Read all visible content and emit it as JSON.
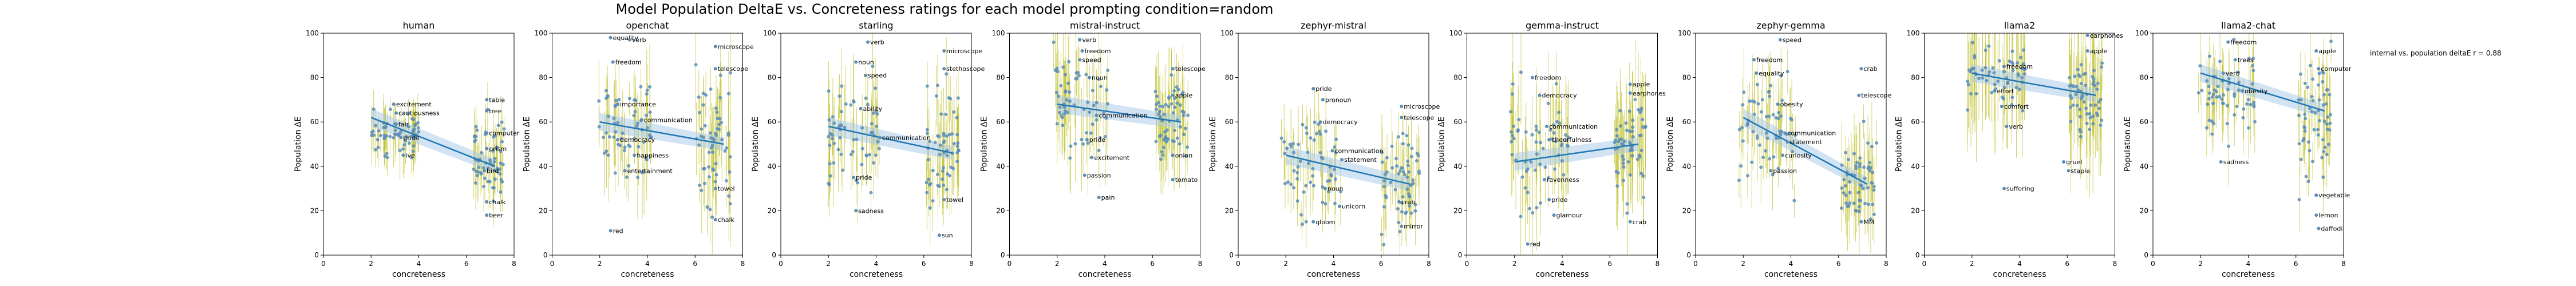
{
  "figure": {
    "title": "Model Population DeltaE vs. Concreteness ratings for each model prompting condition=random",
    "annotation": "internal vs. population deltaE r = 0.88"
  },
  "colors": {
    "points": "#5b8db8",
    "errorbars": "#bcbd22",
    "fit": "#1f77b4",
    "band": "#a6c8e8"
  },
  "chart_data": [
    {
      "type": "scatter",
      "title": "human",
      "xlabel": "concreteness",
      "ylabel": "Population ΔE",
      "xlim": [
        0,
        8
      ],
      "ylim": [
        0,
        100
      ],
      "xticks": [
        0,
        2,
        4,
        6,
        8
      ],
      "yticks": [
        0,
        20,
        40,
        60,
        80,
        100
      ],
      "fit": [
        [
          2,
          62
        ],
        [
          7.2,
          40
        ]
      ],
      "cluster_low": [
        2.0,
        4.0,
        42,
        74,
        55
      ],
      "cluster_high": [
        6.3,
        7.6,
        16,
        68,
        45
      ],
      "errorbar": 9,
      "labels": [
        [
          3.0,
          68,
          "excitement"
        ],
        [
          3.1,
          64,
          "cautiousness"
        ],
        [
          3.1,
          59,
          "fair"
        ],
        [
          3.3,
          53,
          "pride"
        ],
        [
          3.4,
          45,
          "ive"
        ],
        [
          6.9,
          70,
          "table"
        ],
        [
          6.9,
          65,
          "tree"
        ],
        [
          6.9,
          55,
          "computer"
        ],
        [
          6.9,
          48,
          "prism"
        ],
        [
          6.8,
          38,
          "bird"
        ],
        [
          6.9,
          24,
          "chalk"
        ],
        [
          6.9,
          18,
          "beer"
        ]
      ]
    },
    {
      "type": "scatter",
      "title": "openchat",
      "xlabel": "concreteness",
      "ylabel": "Population ΔE",
      "xlim": [
        0,
        8
      ],
      "ylim": [
        0,
        100
      ],
      "xticks": [
        0,
        2,
        4,
        6,
        8
      ],
      "yticks": [
        0,
        20,
        40,
        60,
        80,
        100
      ],
      "fit": [
        [
          2,
          60
        ],
        [
          7.2,
          50
        ]
      ],
      "cluster_low": [
        1.8,
        4.2,
        20,
        98,
        60
      ],
      "cluster_high": [
        6.0,
        7.5,
        15,
        98,
        50
      ],
      "errorbar": 14,
      "labels": [
        [
          2.5,
          98,
          "equality"
        ],
        [
          3.3,
          97,
          "verb"
        ],
        [
          2.6,
          87,
          "freedom"
        ],
        [
          2.8,
          68,
          "importance"
        ],
        [
          3.8,
          61,
          "communication"
        ],
        [
          2.8,
          52,
          "democracy"
        ],
        [
          3.5,
          45,
          "happiness"
        ],
        [
          3.1,
          38,
          "entertainment"
        ],
        [
          2.5,
          11,
          "red"
        ],
        [
          6.9,
          94,
          "microscope"
        ],
        [
          6.9,
          84,
          "telescope"
        ],
        [
          6.9,
          30,
          "towel"
        ],
        [
          6.9,
          16,
          "chalk"
        ]
      ]
    },
    {
      "type": "scatter",
      "title": "starling",
      "xlabel": "concreteness",
      "ylabel": "Population ΔE",
      "xlim": [
        0,
        8
      ],
      "ylim": [
        0,
        100
      ],
      "xticks": [
        0,
        2,
        4,
        6,
        8
      ],
      "yticks": [
        0,
        20,
        40,
        60,
        80,
        100
      ],
      "fit": [
        [
          2,
          58
        ],
        [
          7.2,
          46
        ]
      ],
      "cluster_low": [
        1.9,
        4.2,
        15,
        90,
        55
      ],
      "cluster_high": [
        6.1,
        7.5,
        8,
        94,
        48
      ],
      "errorbar": 14,
      "labels": [
        [
          3.7,
          96,
          "verb"
        ],
        [
          3.2,
          87,
          "noun"
        ],
        [
          3.6,
          81,
          "speed"
        ],
        [
          3.4,
          66,
          "ability"
        ],
        [
          4.2,
          53,
          "communication"
        ],
        [
          3.1,
          35,
          "pride"
        ],
        [
          3.2,
          20,
          "sadness"
        ],
        [
          6.9,
          92,
          "microscope"
        ],
        [
          6.9,
          84,
          "stethoscope"
        ],
        [
          6.9,
          25,
          "towel"
        ],
        [
          6.7,
          9,
          "sun"
        ]
      ]
    },
    {
      "type": "scatter",
      "title": "mistral-instruct",
      "xlabel": "concreteness",
      "ylabel": "Population ΔE",
      "xlim": [
        0,
        8
      ],
      "ylim": [
        0,
        100
      ],
      "xticks": [
        0,
        2,
        4,
        6,
        8
      ],
      "yticks": [
        0,
        20,
        40,
        60,
        80,
        100
      ],
      "fit": [
        [
          2,
          68
        ],
        [
          7.2,
          60
        ]
      ],
      "cluster_low": [
        1.8,
        4.2,
        38,
        98,
        68
      ],
      "cluster_high": [
        6.1,
        7.5,
        35,
        90,
        60
      ],
      "errorbar": 16,
      "labels": [
        [
          3.0,
          97,
          "verb"
        ],
        [
          3.1,
          92,
          "freedom"
        ],
        [
          3.0,
          88,
          "speed"
        ],
        [
          3.4,
          80,
          "noun"
        ],
        [
          3.7,
          63,
          "communication"
        ],
        [
          3.3,
          52,
          "pride"
        ],
        [
          3.5,
          44,
          "excitement"
        ],
        [
          3.2,
          36,
          "passion"
        ],
        [
          3.8,
          26,
          "pain"
        ],
        [
          6.9,
          84,
          "telescope"
        ],
        [
          6.9,
          72,
          "apple"
        ],
        [
          6.9,
          45,
          "onion"
        ],
        [
          6.9,
          34,
          "tomato"
        ]
      ]
    },
    {
      "type": "scatter",
      "title": "zephyr-mistral",
      "xlabel": "concreteness",
      "ylabel": "Population ΔE",
      "xlim": [
        0,
        8
      ],
      "ylim": [
        0,
        100
      ],
      "xticks": [
        0,
        2,
        4,
        6,
        8
      ],
      "yticks": [
        0,
        20,
        40,
        60,
        80,
        100
      ],
      "fit": [
        [
          2,
          45
        ],
        [
          7.2,
          32
        ]
      ],
      "cluster_low": [
        1.8,
        4.3,
        8,
        75,
        40
      ],
      "cluster_high": [
        6.0,
        7.6,
        8,
        75,
        32
      ],
      "errorbar": 12,
      "labels": [
        [
          3.2,
          75,
          "pride"
        ],
        [
          3.6,
          70,
          "pronoun"
        ],
        [
          3.5,
          60,
          "democracy"
        ],
        [
          4.0,
          47,
          "communication"
        ],
        [
          4.4,
          43,
          "statement"
        ],
        [
          3.7,
          30,
          "noun"
        ],
        [
          4.3,
          22,
          "unicorn"
        ],
        [
          3.2,
          15,
          "gloom"
        ],
        [
          6.9,
          67,
          "microscope"
        ],
        [
          6.9,
          62,
          "telescope"
        ],
        [
          6.8,
          24,
          "crab"
        ],
        [
          6.9,
          13,
          "mirror"
        ]
      ]
    },
    {
      "type": "scatter",
      "title": "gemma-instruct",
      "xlabel": "concreteness",
      "ylabel": "Population ΔE",
      "xlim": [
        0,
        8
      ],
      "ylim": [
        0,
        100
      ],
      "xticks": [
        0,
        2,
        4,
        6,
        8
      ],
      "yticks": [
        0,
        20,
        40,
        60,
        80,
        100
      ],
      "fit": [
        [
          2,
          42
        ],
        [
          7.2,
          50
        ]
      ],
      "cluster_low": [
        1.8,
        4.3,
        5,
        90,
        45
      ],
      "cluster_high": [
        6.2,
        7.5,
        15,
        85,
        48
      ],
      "errorbar": 18,
      "labels": [
        [
          2.8,
          80,
          "freedom"
        ],
        [
          3.1,
          72,
          "democracy"
        ],
        [
          3.4,
          58,
          "communication"
        ],
        [
          3.5,
          52,
          "cheerfulness"
        ],
        [
          3.3,
          34,
          "ravenness"
        ],
        [
          3.5,
          25,
          "pride"
        ],
        [
          3.7,
          18,
          "glamour"
        ],
        [
          2.6,
          5,
          "red"
        ],
        [
          6.9,
          77,
          "apple"
        ],
        [
          6.9,
          73,
          "earphones"
        ],
        [
          6.9,
          15,
          "crab"
        ]
      ]
    },
    {
      "type": "scatter",
      "title": "zephyr-gemma",
      "xlabel": "concreteness",
      "ylabel": "Population ΔE",
      "xlim": [
        0,
        8
      ],
      "ylim": [
        0,
        100
      ],
      "xticks": [
        0,
        2,
        4,
        6,
        8
      ],
      "yticks": [
        0,
        20,
        40,
        60,
        80,
        100
      ],
      "fit": [
        [
          2,
          62
        ],
        [
          7.2,
          32
        ]
      ],
      "cluster_low": [
        1.8,
        4.3,
        25,
        95,
        55
      ],
      "cluster_high": [
        6.1,
        7.6,
        10,
        82,
        35
      ],
      "errorbar": 14,
      "labels": [
        [
          3.6,
          97,
          "speed"
        ],
        [
          2.5,
          88,
          "freedom"
        ],
        [
          2.6,
          82,
          "equality"
        ],
        [
          3.5,
          68,
          "obesity"
        ],
        [
          3.8,
          55,
          "communication"
        ],
        [
          3.9,
          51,
          "statement"
        ],
        [
          3.7,
          45,
          "curiosity"
        ],
        [
          3.2,
          38,
          "passion"
        ],
        [
          7.0,
          84,
          "crab"
        ],
        [
          6.9,
          72,
          "telescope"
        ],
        [
          7.0,
          15,
          "MM"
        ]
      ]
    },
    {
      "type": "scatter",
      "title": "llama2",
      "xlabel": "concreteness",
      "ylabel": "Population ΔE",
      "xlim": [
        0,
        8
      ],
      "ylim": [
        0,
        100
      ],
      "xticks": [
        0,
        2,
        4,
        6,
        8
      ],
      "yticks": [
        0,
        20,
        40,
        60,
        80,
        100
      ],
      "fit": [
        [
          2,
          82
        ],
        [
          7.2,
          72
        ]
      ],
      "cluster_low": [
        1.8,
        4.3,
        55,
        100,
        80
      ],
      "cluster_high": [
        6.0,
        7.5,
        55,
        100,
        72
      ],
      "errorbar": 22,
      "labels": [
        [
          3.4,
          85,
          "freedom"
        ],
        [
          3.0,
          74,
          "effort"
        ],
        [
          3.3,
          67,
          "comfort"
        ],
        [
          3.5,
          58,
          "verb"
        ],
        [
          3.4,
          30,
          "suffering"
        ],
        [
          6.9,
          99,
          "earphones"
        ],
        [
          6.9,
          92,
          "apple"
        ],
        [
          5.9,
          42,
          "gruel"
        ],
        [
          6.1,
          38,
          "staple"
        ]
      ]
    },
    {
      "type": "scatter",
      "title": "llama2-chat",
      "xlabel": "concreteness",
      "ylabel": "Population ΔE",
      "xlim": [
        0,
        8
      ],
      "ylim": [
        0,
        100
      ],
      "xticks": [
        0,
        2,
        4,
        6,
        8
      ],
      "yticks": [
        0,
        20,
        40,
        60,
        80,
        100
      ],
      "fit": [
        [
          2,
          82
        ],
        [
          7.2,
          65
        ]
      ],
      "cluster_low": [
        1.8,
        4.3,
        40,
        98,
        72
      ],
      "cluster_high": [
        6.1,
        7.5,
        10,
        98,
        62
      ],
      "errorbar": 12,
      "labels": [
        [
          3.2,
          96,
          "freedom"
        ],
        [
          3.5,
          88,
          "trees"
        ],
        [
          3.0,
          82,
          "verb"
        ],
        [
          3.8,
          74,
          "obesity"
        ],
        [
          2.9,
          42,
          "sadness"
        ],
        [
          6.9,
          92,
          "apple"
        ],
        [
          7.0,
          84,
          "computer"
        ],
        [
          6.9,
          27,
          "vegetable"
        ],
        [
          6.9,
          18,
          "lemon"
        ],
        [
          7.0,
          12,
          "daffodil"
        ]
      ]
    }
  ]
}
